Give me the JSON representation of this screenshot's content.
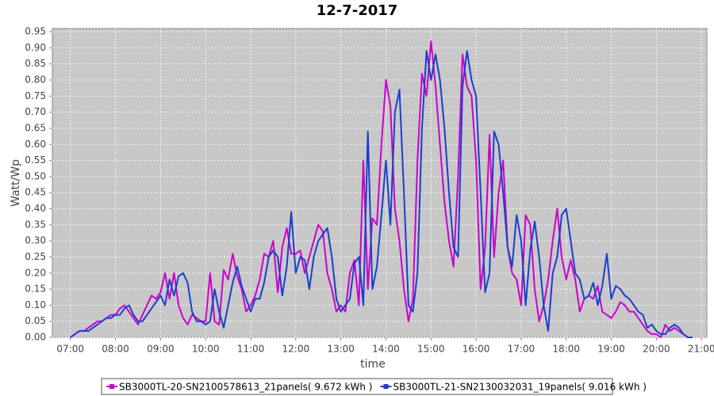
{
  "chart_data": {
    "type": "line",
    "title": "12-7-2017",
    "x_label": "time",
    "y_label": "Watt/Wp",
    "x": [
      7.0,
      7.1,
      7.2,
      7.3,
      7.4,
      7.5,
      7.6,
      7.7,
      7.8,
      7.9,
      8.0,
      8.1,
      8.2,
      8.3,
      8.4,
      8.5,
      8.6,
      8.7,
      8.8,
      8.9,
      9.0,
      9.1,
      9.2,
      9.3,
      9.4,
      9.5,
      9.6,
      9.7,
      9.8,
      9.9,
      10.0,
      10.1,
      10.2,
      10.3,
      10.4,
      10.5,
      10.6,
      10.7,
      10.8,
      10.9,
      11.0,
      11.1,
      11.2,
      11.3,
      11.4,
      11.5,
      11.6,
      11.7,
      11.8,
      11.9,
      12.0,
      12.1,
      12.2,
      12.3,
      12.4,
      12.5,
      12.6,
      12.7,
      12.8,
      12.9,
      13.0,
      13.1,
      13.2,
      13.3,
      13.4,
      13.5,
      13.6,
      13.7,
      13.8,
      13.9,
      14.0,
      14.1,
      14.2,
      14.3,
      14.4,
      14.5,
      14.6,
      14.7,
      14.8,
      14.9,
      15.0,
      15.1,
      15.2,
      15.3,
      15.4,
      15.5,
      15.6,
      15.7,
      15.8,
      15.9,
      16.0,
      16.1,
      16.2,
      16.3,
      16.4,
      16.5,
      16.6,
      16.7,
      16.8,
      16.9,
      17.0,
      17.1,
      17.2,
      17.3,
      17.4,
      17.5,
      17.6,
      17.7,
      17.8,
      17.9,
      18.0,
      18.1,
      18.2,
      18.3,
      18.4,
      18.5,
      18.6,
      18.7,
      18.8,
      18.9,
      19.0,
      19.1,
      19.2,
      19.3,
      19.4,
      19.5,
      19.6,
      19.7,
      19.8,
      19.9,
      20.0,
      20.1,
      20.2,
      20.3,
      20.4,
      20.5,
      20.6,
      20.7,
      20.8
    ],
    "series": [
      {
        "name": "SB3000TL-20-SN2100578613_21panels( 9.672 kWh )",
        "color": "#cc00cc",
        "values": [
          0.0,
          0.01,
          0.02,
          0.02,
          0.03,
          0.04,
          0.05,
          0.05,
          0.06,
          0.07,
          0.07,
          0.09,
          0.1,
          0.08,
          0.06,
          0.04,
          0.07,
          0.1,
          0.13,
          0.12,
          0.14,
          0.2,
          0.12,
          0.2,
          0.1,
          0.06,
          0.04,
          0.07,
          0.06,
          0.05,
          0.05,
          0.2,
          0.05,
          0.04,
          0.21,
          0.18,
          0.26,
          0.19,
          0.15,
          0.08,
          0.1,
          0.13,
          0.18,
          0.26,
          0.25,
          0.3,
          0.14,
          0.28,
          0.34,
          0.26,
          0.26,
          0.27,
          0.2,
          0.25,
          0.3,
          0.35,
          0.33,
          0.2,
          0.15,
          0.08,
          0.1,
          0.08,
          0.2,
          0.24,
          0.1,
          0.55,
          0.15,
          0.37,
          0.35,
          0.6,
          0.8,
          0.72,
          0.4,
          0.3,
          0.15,
          0.05,
          0.12,
          0.55,
          0.82,
          0.75,
          0.92,
          0.78,
          0.6,
          0.42,
          0.3,
          0.22,
          0.5,
          0.88,
          0.78,
          0.75,
          0.55,
          0.15,
          0.28,
          0.63,
          0.25,
          0.45,
          0.55,
          0.28,
          0.2,
          0.18,
          0.1,
          0.38,
          0.35,
          0.15,
          0.05,
          0.1,
          0.18,
          0.3,
          0.4,
          0.25,
          0.18,
          0.24,
          0.18,
          0.08,
          0.12,
          0.13,
          0.12,
          0.16,
          0.08,
          0.07,
          0.06,
          0.08,
          0.11,
          0.1,
          0.08,
          0.08,
          0.06,
          0.04,
          0.02,
          0.01,
          0.01,
          0.0,
          0.04,
          0.02,
          0.03,
          0.02,
          0.01,
          0.0,
          null
        ]
      },
      {
        "name": "SB3000TL-21-SN2130032031_19panels( 9.016 kWh )",
        "color": "#1a3fcc",
        "values": [
          0.0,
          0.01,
          0.02,
          0.02,
          0.02,
          0.03,
          0.04,
          0.05,
          0.06,
          0.06,
          0.07,
          0.07,
          0.09,
          0.1,
          0.07,
          0.05,
          0.05,
          0.07,
          0.09,
          0.11,
          0.13,
          0.1,
          0.18,
          0.13,
          0.19,
          0.2,
          0.17,
          0.08,
          0.05,
          0.05,
          0.04,
          0.05,
          0.15,
          0.08,
          0.03,
          0.1,
          0.17,
          0.22,
          0.16,
          0.12,
          0.08,
          0.12,
          0.12,
          0.17,
          0.25,
          0.27,
          0.25,
          0.13,
          0.22,
          0.39,
          0.2,
          0.25,
          0.24,
          0.15,
          0.25,
          0.3,
          0.32,
          0.34,
          0.25,
          0.12,
          0.08,
          0.1,
          0.12,
          0.23,
          0.25,
          0.1,
          0.64,
          0.15,
          0.22,
          0.38,
          0.55,
          0.35,
          0.7,
          0.77,
          0.45,
          0.1,
          0.08,
          0.2,
          0.65,
          0.89,
          0.8,
          0.88,
          0.8,
          0.65,
          0.45,
          0.28,
          0.25,
          0.78,
          0.89,
          0.8,
          0.75,
          0.45,
          0.14,
          0.2,
          0.64,
          0.6,
          0.45,
          0.28,
          0.22,
          0.38,
          0.3,
          0.1,
          0.27,
          0.36,
          0.25,
          0.1,
          0.02,
          0.2,
          0.25,
          0.38,
          0.4,
          0.3,
          0.2,
          0.18,
          0.12,
          0.13,
          0.17,
          0.1,
          0.16,
          0.26,
          0.12,
          0.16,
          0.15,
          0.13,
          0.12,
          0.1,
          0.08,
          0.07,
          0.03,
          0.04,
          0.02,
          0.01,
          0.01,
          0.03,
          0.04,
          0.03,
          0.01,
          0.0,
          0.0
        ]
      }
    ],
    "xlim": [
      6.6,
      21.12
    ],
    "ylim": [
      0,
      0.96
    ],
    "xticks": [
      {
        "value": 7,
        "label": "07:00"
      },
      {
        "value": 8,
        "label": "08:00"
      },
      {
        "value": 9,
        "label": "09:00"
      },
      {
        "value": 10,
        "label": "10:00"
      },
      {
        "value": 11,
        "label": "11:00"
      },
      {
        "value": 12,
        "label": "12:00"
      },
      {
        "value": 13,
        "label": "13:00"
      },
      {
        "value": 14,
        "label": "14:00"
      },
      {
        "value": 15,
        "label": "15:00"
      },
      {
        "value": 16,
        "label": "16:00"
      },
      {
        "value": 17,
        "label": "17:00"
      },
      {
        "value": 18,
        "label": "18:00"
      },
      {
        "value": 19,
        "label": "19:00"
      },
      {
        "value": 20,
        "label": "20:00"
      },
      {
        "value": 21,
        "label": "21:00"
      }
    ],
    "yticks": [
      {
        "value": 0,
        "label": "0.00"
      },
      {
        "value": 0.05,
        "label": "0.05"
      },
      {
        "value": 0.1,
        "label": "0.10"
      },
      {
        "value": 0.15,
        "label": "0.15"
      },
      {
        "value": 0.2,
        "label": "0.20"
      },
      {
        "value": 0.25,
        "label": "0.25"
      },
      {
        "value": 0.3,
        "label": "0.30"
      },
      {
        "value": 0.35,
        "label": "0.35"
      },
      {
        "value": 0.4,
        "label": "0.40"
      },
      {
        "value": 0.45,
        "label": "0.45"
      },
      {
        "value": 0.5,
        "label": "0.50"
      },
      {
        "value": 0.55,
        "label": "0.55"
      },
      {
        "value": 0.6,
        "label": "0.60"
      },
      {
        "value": 0.65,
        "label": "0.65"
      },
      {
        "value": 0.7,
        "label": "0.70"
      },
      {
        "value": 0.75,
        "label": "0.75"
      },
      {
        "value": 0.8,
        "label": "0.80"
      },
      {
        "value": 0.85,
        "label": "0.85"
      },
      {
        "value": 0.9,
        "label": "0.90"
      },
      {
        "value": 0.95,
        "label": "0.95"
      }
    ],
    "grid": true,
    "legend": "bottom"
  }
}
